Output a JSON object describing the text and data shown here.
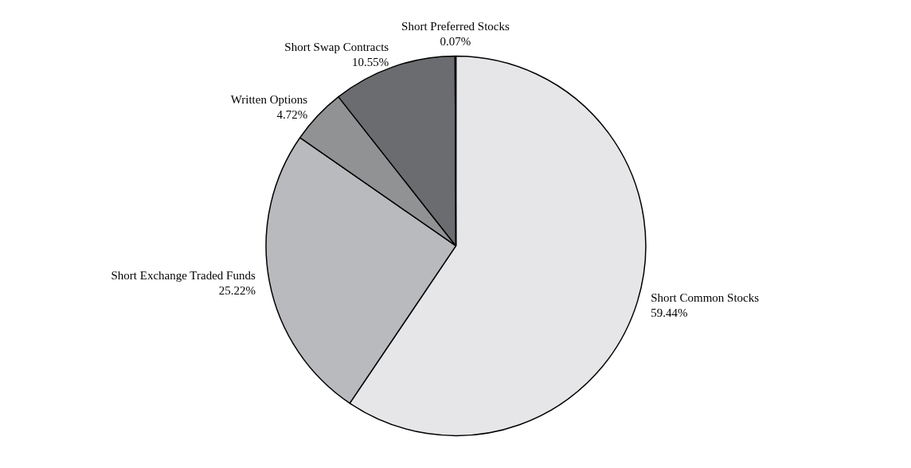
{
  "chart_data": {
    "type": "pie",
    "categories": [
      "Short Common Stocks",
      "Short Exchange Traded Funds",
      "Written Options",
      "Short Swap Contracts",
      "Short Preferred Stocks"
    ],
    "values": [
      59.44,
      25.22,
      4.72,
      10.55,
      0.07
    ],
    "value_labels": [
      "59.44%",
      "25.22%",
      "4.72%",
      "10.55%",
      "0.07%"
    ],
    "colors": [
      "#e6e6e8",
      "#b9babd",
      "#919294",
      "#6b6c70",
      "#3a3a3a"
    ]
  }
}
